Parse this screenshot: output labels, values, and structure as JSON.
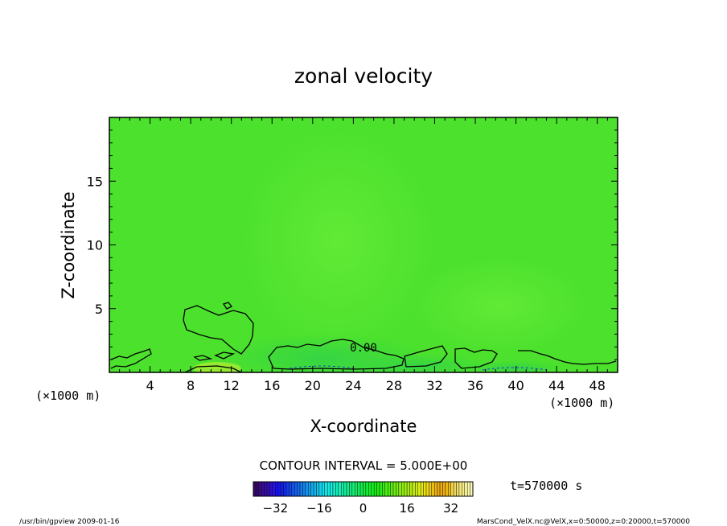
{
  "chart_data": {
    "type": "heatmap",
    "title": "zonal velocity",
    "xlabel": "X-coordinate",
    "ylabel": "Z-coordinate",
    "x_unit": "(×1000 m)",
    "y_unit": "(×1000 m)",
    "xlim": [
      0,
      50
    ],
    "ylim": [
      0,
      20
    ],
    "x_ticks": [
      4,
      8,
      12,
      16,
      20,
      24,
      28,
      32,
      36,
      40,
      44,
      48
    ],
    "y_ticks": [
      5,
      10,
      15
    ],
    "contour_interval_text": "CONTOUR INTERVAL = 5.000E+00",
    "contour_label": "0.00",
    "time_text": "t=570000 s",
    "colorbar_ticks": [
      -32,
      -16,
      0,
      16,
      32
    ],
    "colorbar_range": [
      -40,
      40
    ],
    "fill_color": "#4ce12d",
    "footer_left": "/usr/bin/gpview  2009-01-16",
    "footer_right": "MarsCond_VelX.nc@VelX,x=0:50000,z=0:20000,t=570000"
  }
}
